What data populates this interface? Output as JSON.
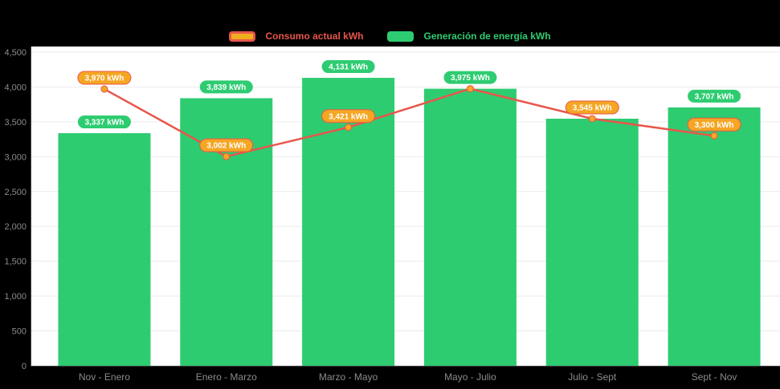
{
  "colors": {
    "background": "#000000",
    "plot_background": "#ffffff",
    "grid_line": "#ebebeb",
    "axis_line": "#444444",
    "tick_label": "#8b8b8b",
    "bar": "#2ecc71",
    "line": "#e8564b",
    "point_fill": "#f5a623",
    "point_border": "#e8564b",
    "badge_generation_bg": "#2ecc71",
    "badge_consumption_bg": "#f5a623",
    "badge_consumption_border": "#e8564b",
    "badge_text": "#ffffff",
    "legend_consumption_text": "#e8564b",
    "legend_generation_text": "#2ecc71",
    "legend_consumption_swatch_fill": "#f0ad1e",
    "legend_consumption_swatch_border": "#e8564b"
  },
  "legend": {
    "items": [
      {
        "id": "consumo",
        "label": "Consumo actual kWh"
      },
      {
        "id": "generacion",
        "label": "Generación de energía kWh"
      }
    ]
  },
  "chart_data": {
    "type": "bar",
    "subtype": "bar+line combo",
    "categories": [
      "Nov - Enero",
      "Enero - Marzo",
      "Marzo - Mayo",
      "Mayo - Julio",
      "Julio - Sept",
      "Sept - Nov"
    ],
    "series": [
      {
        "name": "Generación de energía kWh",
        "type": "bar",
        "values": [
          3337,
          3839,
          4131,
          3975,
          3545,
          3707
        ],
        "data_labels": [
          "3,337 kWh",
          "3,839 kWh",
          "4,131 kWh",
          "3,975 kWh",
          "3,545 kWh",
          "3,707 kWh"
        ],
        "label_visible": [
          true,
          true,
          true,
          true,
          false,
          true
        ]
      },
      {
        "name": "Consumo actual kWh",
        "type": "line",
        "values": [
          3970,
          3002,
          3421,
          3975,
          3545,
          3300
        ],
        "data_labels": [
          "3,970 kWh",
          "3,002 kWh",
          "3,421 kWh",
          "3,975 kWh",
          "3,545 kWh",
          "3,300 kWh"
        ],
        "label_visible": [
          true,
          true,
          true,
          false,
          true,
          true
        ]
      }
    ],
    "ylim": [
      0,
      4500
    ],
    "ytick_step": 500,
    "ytick_labels": [
      "0",
      "500",
      "1,000",
      "1,500",
      "2,000",
      "2,500",
      "3,000",
      "3,500",
      "4,000",
      "4,500"
    ],
    "grid": true,
    "legend_position": "top",
    "title": "",
    "xlabel": "",
    "ylabel": ""
  }
}
